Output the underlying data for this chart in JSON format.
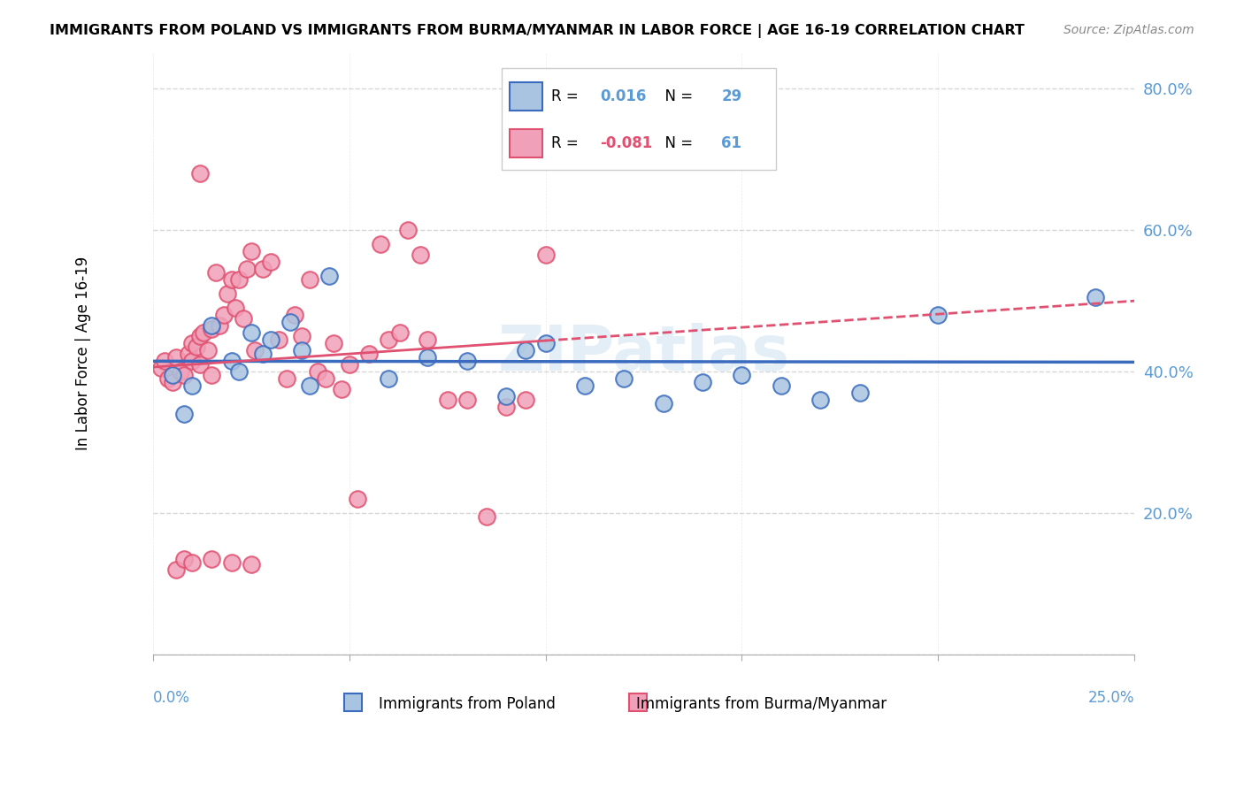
{
  "title": "IMMIGRANTS FROM POLAND VS IMMIGRANTS FROM BURMA/MYANMAR IN LABOR FORCE | AGE 16-19 CORRELATION CHART",
  "source": "Source: ZipAtlas.com",
  "ylabel": "In Labor Force | Age 16-19",
  "y_ticks": [
    0.0,
    0.2,
    0.4,
    0.6,
    0.8
  ],
  "y_tick_labels": [
    "",
    "20.0%",
    "40.0%",
    "60.0%",
    "80.0%"
  ],
  "x_range": [
    0.0,
    0.25
  ],
  "y_range": [
    0.0,
    0.85
  ],
  "legend_poland_r": "0.016",
  "legend_poland_n": "29",
  "legend_burma_r": "-0.081",
  "legend_burma_n": "61",
  "color_poland": "#a8c4e0",
  "color_poland_line": "#3a6bbf",
  "color_burma": "#f0a0b8",
  "color_burma_line": "#e05070",
  "color_axis_labels": "#5b9bd5",
  "watermark": "ZIPatlas"
}
